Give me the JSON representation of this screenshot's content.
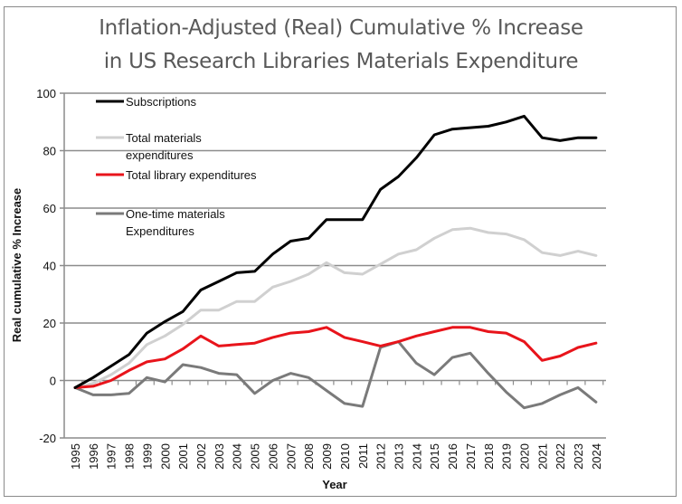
{
  "chart_data": {
    "type": "line",
    "title": "Inflation-Adjusted (Real) Cumulative % Increase in US Research Libraries Materials Expenditure",
    "title_lines": [
      "Inflation-Adjusted (Real) Cumulative % Increase",
      "in US Research Libraries Materials Expenditure"
    ],
    "xlabel": "Year",
    "ylabel": "Real cumulative % Increase",
    "ylim": [
      -20,
      100
    ],
    "yticks": [
      -20,
      0,
      20,
      40,
      60,
      80,
      100
    ],
    "grid": true,
    "legend_position": "top-left",
    "x": [
      "1995",
      "1996",
      "1997",
      "1998",
      "1999",
      "2000",
      "2001",
      "2002",
      "2003",
      "2004",
      "2005",
      "2006",
      "2007",
      "2008",
      "2009",
      "2010",
      "2011",
      "2012",
      "2013",
      "2014",
      "2015",
      "2016",
      "2017",
      "2018",
      "2019",
      "2020",
      "2021",
      "2022",
      "2023",
      "2024"
    ],
    "series": [
      {
        "name": "Subscriptions",
        "legend_lines": [
          "Subscriptions"
        ],
        "color": "#000000",
        "values": [
          -2.5,
          1,
          5,
          9,
          16.5,
          20.5,
          24,
          31.5,
          34.5,
          37.5,
          38,
          44,
          48.5,
          49.5,
          56,
          56,
          56,
          66.5,
          71,
          77.5,
          85.5,
          87.5,
          88,
          88.5,
          90,
          92,
          84.5,
          83.5,
          84.5,
          84.5
        ]
      },
      {
        "name": "Total materials expenditures",
        "legend_lines": [
          "Total materials",
          "expenditures"
        ],
        "color": "#d0d0d0",
        "values": [
          -2.5,
          -1,
          2,
          6,
          12.5,
          15.5,
          19.5,
          24.5,
          24.5,
          27.5,
          27.5,
          32.5,
          34.5,
          37,
          41,
          37.5,
          37,
          40.5,
          44,
          45.5,
          49.5,
          52.5,
          53,
          51.5,
          51,
          49,
          44.5,
          43.5,
          45,
          43.5
        ]
      },
      {
        "name": "Total library expenditures",
        "legend_lines": [
          "Total library expenditures"
        ],
        "color": "#e8141b",
        "values": [
          -2.5,
          -2,
          0,
          3.5,
          6.5,
          7.5,
          11,
          15.5,
          12,
          12.5,
          13,
          15,
          16.5,
          17,
          18.5,
          15,
          13.5,
          12,
          13.5,
          15.5,
          17,
          18.5,
          18.5,
          17,
          16.5,
          13.5,
          7,
          8.5,
          11.5,
          13
        ]
      },
      {
        "name": "One-time materials Expenditures",
        "legend_lines": [
          "One-time materials",
          "Expenditures"
        ],
        "color": "#7a7a7a",
        "values": [
          -2.5,
          -5,
          -5,
          -4.5,
          1,
          -0.5,
          5.5,
          4.5,
          2.5,
          2,
          -4.5,
          0,
          2.5,
          1,
          -3.5,
          -8,
          -9,
          11.5,
          13.5,
          6,
          2,
          8,
          9.5,
          2.5,
          -4,
          -9.5,
          -8,
          -5,
          -2.5,
          -7.5
        ]
      }
    ]
  }
}
